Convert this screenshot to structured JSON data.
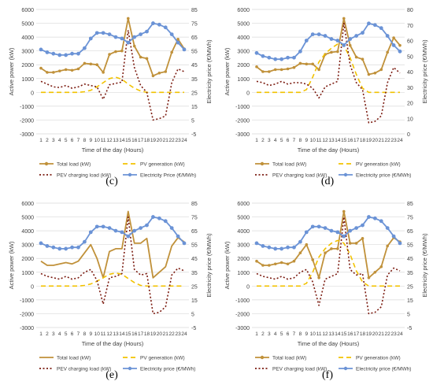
{
  "chart_data": [
    {
      "type": "line",
      "panel_label": "(c)",
      "xlabel": "Time of the day (Hours)",
      "ylabel": "Active power (kW)",
      "y2label": "Electricity price (€/MWh)",
      "ylim": [
        -3000,
        6000
      ],
      "y2lim": [
        -5,
        85
      ],
      "yticks": [
        -3000,
        -2000,
        -1000,
        0,
        1000,
        2000,
        3000,
        4000,
        5000,
        6000
      ],
      "y2ticks": [
        -5,
        5,
        15,
        25,
        35,
        45,
        55,
        65,
        75,
        85
      ],
      "x": [
        1,
        2,
        3,
        4,
        5,
        6,
        7,
        8,
        9,
        10,
        11,
        12,
        13,
        14,
        15,
        16,
        17,
        18,
        19,
        20,
        21,
        22,
        23,
        24
      ],
      "series": [
        {
          "name": "Total load (kW)",
          "color": "#c0913a",
          "style": "solid",
          "marker": "dot",
          "axis": "left",
          "values": [
            1750,
            1450,
            1450,
            1550,
            1650,
            1600,
            1700,
            2100,
            2050,
            2000,
            1450,
            2750,
            2950,
            3000,
            5350,
            3350,
            2550,
            2450,
            1200,
            1400,
            1500,
            2900,
            3850,
            3150
          ]
        },
        {
          "name": "PV generation (kW)",
          "color": "#f2c200",
          "style": "dashed",
          "marker": "none",
          "axis": "left",
          "values": [
            0,
            0,
            0,
            0,
            0,
            0,
            0,
            50,
            150,
            400,
            700,
            1000,
            1100,
            950,
            600,
            300,
            100,
            0,
            0,
            0,
            0,
            0,
            0,
            0
          ]
        },
        {
          "name": "PEV charging load (kW)",
          "color": "#7b1b10",
          "style": "dotted",
          "marker": "none",
          "axis": "left",
          "values": [
            800,
            600,
            400,
            350,
            500,
            300,
            400,
            600,
            500,
            400,
            -500,
            550,
            650,
            750,
            4500,
            1800,
            500,
            0,
            -2000,
            -1900,
            -1700,
            700,
            1700,
            1500
          ]
        },
        {
          "name": "Electricity Price (€/MWh)",
          "color": "#6b93d6",
          "style": "solid",
          "marker": "dot",
          "axis": "right",
          "values": [
            56,
            54,
            53,
            52,
            52,
            53,
            53,
            57,
            64,
            68,
            68,
            67,
            65,
            64,
            61,
            65,
            67,
            69,
            75,
            74,
            72,
            67,
            61,
            56
          ]
        }
      ],
      "legend": "bottom"
    },
    {
      "type": "line",
      "panel_label": "(d)",
      "xlabel": "Time of the day (Hours)",
      "ylabel": "Active power (kW)",
      "y2label": "Electricity price (€/MWh)",
      "ylim": [
        -3000,
        6000
      ],
      "y2lim": [
        0,
        80
      ],
      "yticks": [
        -3000,
        -2000,
        -1000,
        0,
        1000,
        2000,
        3000,
        4000,
        5000,
        6000
      ],
      "y2ticks": [
        0,
        10,
        20,
        30,
        40,
        50,
        60,
        70,
        80
      ],
      "x": [
        1,
        2,
        3,
        4,
        5,
        6,
        7,
        8,
        9,
        10,
        11,
        12,
        13,
        14,
        15,
        16,
        17,
        18,
        19,
        20,
        21,
        22,
        23,
        24
      ],
      "series": [
        {
          "name": "Total load (kW)",
          "color": "#c0913a",
          "style": "solid",
          "marker": "dot",
          "axis": "left",
          "values": [
            1850,
            1500,
            1500,
            1650,
            1650,
            1700,
            1800,
            2100,
            2050,
            2050,
            1650,
            2750,
            2900,
            2950,
            5350,
            3400,
            2550,
            2400,
            1300,
            1400,
            1650,
            2900,
            3950,
            3400
          ]
        },
        {
          "name": "PV generation (kW)",
          "color": "#f2c200",
          "style": "dashed",
          "marker": "none",
          "axis": "left",
          "values": [
            0,
            0,
            0,
            0,
            0,
            0,
            0,
            0,
            200,
            1100,
            2200,
            2800,
            3200,
            3500,
            3400,
            2500,
            1300,
            300,
            0,
            0,
            0,
            0,
            0,
            0
          ]
        },
        {
          "name": "PEV charging load (kW)",
          "color": "#7b1b10",
          "style": "dotted",
          "marker": "none",
          "axis": "left",
          "values": [
            800,
            700,
            500,
            600,
            800,
            600,
            700,
            700,
            600,
            300,
            -400,
            400,
            600,
            800,
            5000,
            2000,
            700,
            200,
            -2200,
            -2100,
            -1700,
            700,
            1800,
            1400
          ]
        },
        {
          "name": "Electricity price (€/MWh)",
          "color": "#6b93d6",
          "style": "solid",
          "marker": "dot",
          "axis": "right",
          "values": [
            52,
            50,
            49,
            48,
            48,
            49,
            49,
            53,
            60,
            64,
            64,
            63,
            61,
            60,
            57,
            61,
            63,
            65,
            71,
            70,
            68,
            63,
            57,
            53
          ]
        }
      ],
      "legend": "bottom"
    },
    {
      "type": "line",
      "panel_label": "(e)",
      "xlabel": "Time of the day (Hours)",
      "ylabel": "Active power (kW)",
      "y2label": "Electricity price (€/MWh)",
      "ylim": [
        -3000,
        6000
      ],
      "y2lim": [
        -5,
        85
      ],
      "yticks": [
        -3000,
        -2000,
        -1000,
        0,
        1000,
        2000,
        3000,
        4000,
        5000,
        6000
      ],
      "y2ticks": [
        -5,
        5,
        15,
        25,
        35,
        45,
        55,
        65,
        75,
        85
      ],
      "x": [
        1,
        2,
        3,
        4,
        5,
        6,
        7,
        8,
        9,
        10,
        11,
        12,
        13,
        14,
        15,
        16,
        17,
        18,
        19,
        20,
        21,
        22,
        23,
        24
      ],
      "series": [
        {
          "name": "Total load (kW)",
          "color": "#c0913a",
          "style": "solid",
          "marker": "none",
          "axis": "left",
          "values": [
            1800,
            1500,
            1500,
            1600,
            1700,
            1600,
            1800,
            2400,
            3000,
            2000,
            600,
            2500,
            2700,
            2700,
            5400,
            3100,
            3100,
            3450,
            600,
            1000,
            1400,
            2900,
            3500,
            3200
          ]
        },
        {
          "name": "PV generation (kW)",
          "color": "#f2c200",
          "style": "dashed",
          "marker": "none",
          "axis": "left",
          "values": [
            0,
            0,
            0,
            0,
            0,
            0,
            0,
            50,
            150,
            350,
            600,
            850,
            950,
            850,
            550,
            250,
            50,
            0,
            0,
            0,
            0,
            0,
            0,
            0
          ]
        },
        {
          "name": "PEV charging load (kW)",
          "color": "#7b1b10",
          "style": "dotted",
          "marker": "none",
          "axis": "left",
          "values": [
            900,
            700,
            600,
            500,
            700,
            500,
            600,
            1000,
            1200,
            400,
            -1300,
            600,
            700,
            900,
            5000,
            1200,
            800,
            900,
            -2000,
            -1900,
            -1500,
            800,
            1300,
            1100
          ]
        },
        {
          "name": "Electricity price (€/MWh)",
          "color": "#6b93d6",
          "style": "solid",
          "marker": "dot",
          "axis": "right",
          "values": [
            56,
            54,
            53,
            52,
            52,
            53,
            53,
            57,
            64,
            68,
            68,
            67,
            65,
            64,
            61,
            65,
            67,
            69,
            75,
            74,
            72,
            67,
            61,
            56
          ]
        }
      ],
      "legend": "bottom"
    },
    {
      "type": "line",
      "panel_label": "(f)",
      "xlabel": "Time of the day (Hours)",
      "ylabel": "Active power (kW)",
      "y2label": "Electricity price (€/MWh)",
      "ylim": [
        -3000,
        6000
      ],
      "y2lim": [
        -5,
        85
      ],
      "yticks": [
        -3000,
        -2000,
        -1000,
        0,
        1000,
        2000,
        3000,
        4000,
        5000,
        6000
      ],
      "y2ticks": [
        -5,
        5,
        15,
        25,
        35,
        45,
        55,
        65,
        75,
        85
      ],
      "x": [
        1,
        2,
        3,
        4,
        5,
        6,
        7,
        8,
        9,
        10,
        11,
        12,
        13,
        14,
        15,
        16,
        17,
        18,
        19,
        20,
        21,
        22,
        23,
        24
      ],
      "series": [
        {
          "name": "Total load (kW)",
          "color": "#c0913a",
          "style": "solid",
          "marker": "dot",
          "axis": "left",
          "values": [
            1800,
            1500,
            1500,
            1600,
            1700,
            1600,
            1800,
            2400,
            3000,
            1900,
            600,
            2400,
            2700,
            2700,
            5400,
            3100,
            3100,
            3450,
            600,
            1000,
            1400,
            2900,
            3500,
            3200
          ]
        },
        {
          "name": "PV generation (kW)",
          "color": "#f2c200",
          "style": "dashed",
          "marker": "none",
          "axis": "left",
          "values": [
            0,
            0,
            0,
            0,
            0,
            0,
            0,
            0,
            200,
            1000,
            2100,
            2700,
            3100,
            3300,
            3100,
            2300,
            1100,
            300,
            0,
            0,
            0,
            0,
            0,
            0
          ]
        },
        {
          "name": "PEV charging load (kW)",
          "color": "#7b1b10",
          "style": "dotted",
          "marker": "none",
          "axis": "left",
          "values": [
            900,
            700,
            600,
            500,
            700,
            500,
            600,
            1000,
            1200,
            300,
            -1400,
            500,
            700,
            900,
            5000,
            1200,
            800,
            900,
            -2000,
            -1900,
            -1500,
            800,
            1300,
            1100
          ]
        },
        {
          "name": "Electricity price (€/MWh)",
          "color": "#6b93d6",
          "style": "solid",
          "marker": "dot",
          "axis": "right",
          "values": [
            56,
            54,
            53,
            52,
            52,
            53,
            53,
            57,
            64,
            68,
            68,
            67,
            65,
            64,
            61,
            65,
            67,
            69,
            75,
            74,
            72,
            67,
            61,
            56
          ]
        }
      ],
      "legend": "bottom"
    }
  ]
}
